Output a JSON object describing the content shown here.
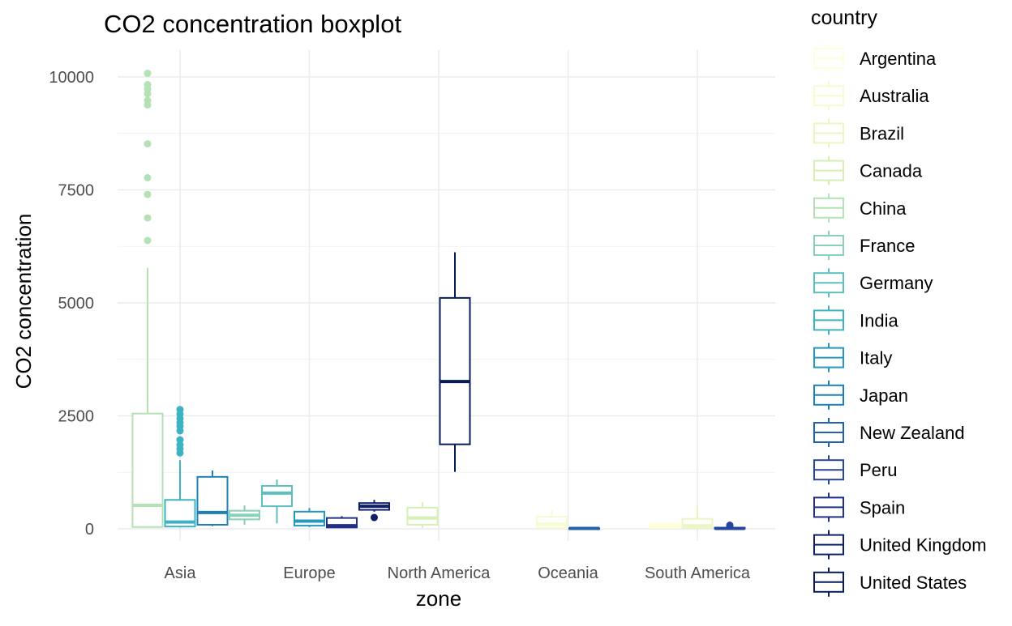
{
  "chart_data": {
    "type": "boxplot",
    "title": "CO2 concentration boxplot",
    "xlabel": "zone",
    "ylabel": "CO2 concentration",
    "ylim": [
      -150,
      10400
    ],
    "yticks": [
      0,
      2500,
      5000,
      7500,
      10000
    ],
    "ytick_labels": [
      "0",
      "2500",
      "5000",
      "7500",
      "10000"
    ],
    "categories": [
      "Asia",
      "Europe",
      "North America",
      "Oceania",
      "South America"
    ],
    "grid": true,
    "legend": {
      "title": "country",
      "position": "right",
      "entries": [
        {
          "name": "Argentina",
          "color": "#ffffd9"
        },
        {
          "name": "Australia",
          "color": "#f7fcce"
        },
        {
          "name": "Brazil",
          "color": "#eaf7c0"
        },
        {
          "name": "Canada",
          "color": "#d6efb3"
        },
        {
          "name": "China",
          "color": "#b5e2b5"
        },
        {
          "name": "France",
          "color": "#8ad1bb"
        },
        {
          "name": "Germany",
          "color": "#5dc0c0"
        },
        {
          "name": "India",
          "color": "#3db2c3"
        },
        {
          "name": "Italy",
          "color": "#2598c1"
        },
        {
          "name": "Japan",
          "color": "#1f80b8"
        },
        {
          "name": "New Zealand",
          "color": "#2162aa"
        },
        {
          "name": "Peru",
          "color": "#24479d"
        },
        {
          "name": "Spain",
          "color": "#20308a"
        },
        {
          "name": "United Kingdom",
          "color": "#101f6a"
        },
        {
          "name": "United States",
          "color": "#081d58"
        }
      ]
    },
    "series": [
      {
        "zone": "Asia",
        "country": "China",
        "min": 30,
        "q1": 40,
        "median": 520,
        "q3": 2550,
        "max": 5780,
        "outliers": [
          6380,
          6880,
          7400,
          7770,
          8520,
          9380,
          9480,
          9630,
          9730,
          9830,
          10080
        ]
      },
      {
        "zone": "Asia",
        "country": "India",
        "min": 30,
        "q1": 50,
        "median": 150,
        "q3": 640,
        "max": 1520,
        "outliers": [
          1680,
          1770,
          1860,
          1970,
          2170,
          2270,
          2350,
          2440,
          2540,
          2640
        ]
      },
      {
        "zone": "Asia",
        "country": "Japan",
        "min": 60,
        "q1": 90,
        "median": 360,
        "q3": 1150,
        "max": 1290,
        "outliers": []
      },
      {
        "zone": "Europe",
        "country": "France",
        "min": 90,
        "q1": 210,
        "median": 300,
        "q3": 400,
        "max": 520,
        "outliers": []
      },
      {
        "zone": "Europe",
        "country": "Germany",
        "min": 120,
        "q1": 500,
        "median": 790,
        "q3": 950,
        "max": 1090,
        "outliers": []
      },
      {
        "zone": "Europe",
        "country": "Italy",
        "min": 40,
        "q1": 70,
        "median": 170,
        "q3": 380,
        "max": 460,
        "outliers": []
      },
      {
        "zone": "Europe",
        "country": "Spain",
        "min": 20,
        "q1": 30,
        "median": 70,
        "q3": 240,
        "max": 280,
        "outliers": []
      },
      {
        "zone": "Europe",
        "country": "United Kingdom",
        "min": 380,
        "q1": 420,
        "median": 500,
        "q3": 570,
        "max": 640,
        "outliers": [
          250
        ]
      },
      {
        "zone": "North America",
        "country": "Canada",
        "min": 20,
        "q1": 90,
        "median": 240,
        "q3": 470,
        "max": 590,
        "outliers": []
      },
      {
        "zone": "North America",
        "country": "United States",
        "min": 1260,
        "q1": 1870,
        "median": 3260,
        "q3": 5110,
        "max": 6120,
        "outliers": []
      },
      {
        "zone": "Oceania",
        "country": "Australia",
        "min": 10,
        "q1": 20,
        "median": 100,
        "q3": 270,
        "max": 420,
        "outliers": []
      },
      {
        "zone": "Oceania",
        "country": "New Zealand",
        "min": 0,
        "q1": 5,
        "median": 10,
        "q3": 15,
        "max": 25,
        "outliers": []
      },
      {
        "zone": "South America",
        "country": "Argentina",
        "min": 5,
        "q1": 20,
        "median": 60,
        "q3": 110,
        "max": 150,
        "outliers": []
      },
      {
        "zone": "South America",
        "country": "Brazil",
        "min": 10,
        "q1": 30,
        "median": 70,
        "q3": 220,
        "max": 500,
        "outliers": []
      },
      {
        "zone": "South America",
        "country": "Peru",
        "min": 0,
        "q1": 5,
        "median": 10,
        "q3": 25,
        "max": 35,
        "outliers": [
          60,
          80
        ]
      }
    ]
  }
}
